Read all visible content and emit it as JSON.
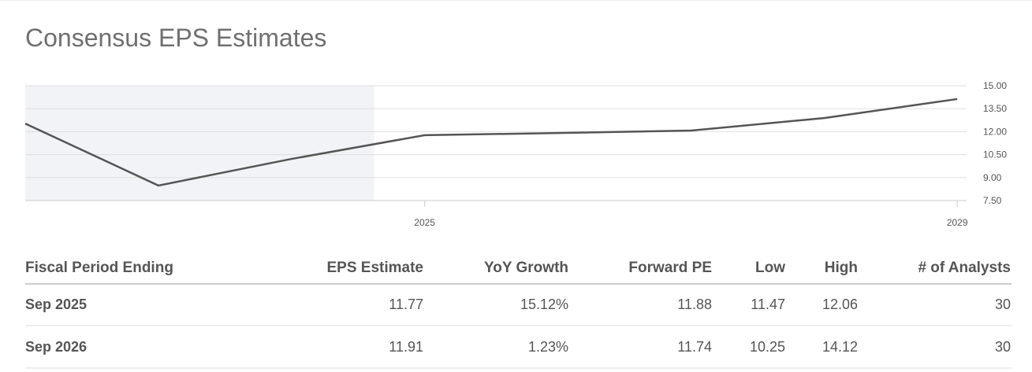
{
  "chart_data": {
    "type": "line",
    "title": "Consensus EPS Estimates",
    "x": [
      2022,
      2023,
      2024,
      2025,
      2026,
      2027,
      2028,
      2029
    ],
    "values": [
      12.53,
      8.48,
      10.22,
      11.77,
      11.91,
      12.07,
      12.89,
      14.13
    ],
    "color": "#555555",
    "xlim": [
      2022,
      2029.07
    ],
    "xticks": [
      2025,
      2029
    ],
    "ylim": [
      7.5,
      15
    ],
    "yticks": [
      {
        "value": 7.5,
        "label": "7.50"
      },
      {
        "value": 9,
        "label": "9.00"
      },
      {
        "value": 10.5,
        "label": "10.50"
      },
      {
        "value": 12,
        "label": "12.00"
      },
      {
        "value": 13.5,
        "label": "13.50"
      },
      {
        "value": 15,
        "label": "15.00"
      }
    ],
    "grid": true,
    "shaded_until": 2024.62
  },
  "table": {
    "columns": [
      "Fiscal Period Ending",
      "EPS Estimate",
      "YoY Growth",
      "Forward PE",
      "Low",
      "High",
      "# of Analysts"
    ],
    "rows": [
      [
        "Sep 2025",
        "11.77",
        "15.12%",
        "11.88",
        "11.47",
        "12.06",
        "30"
      ],
      [
        "Sep 2026",
        "11.91",
        "1.23%",
        "11.74",
        "10.25",
        "14.12",
        "30"
      ]
    ]
  }
}
